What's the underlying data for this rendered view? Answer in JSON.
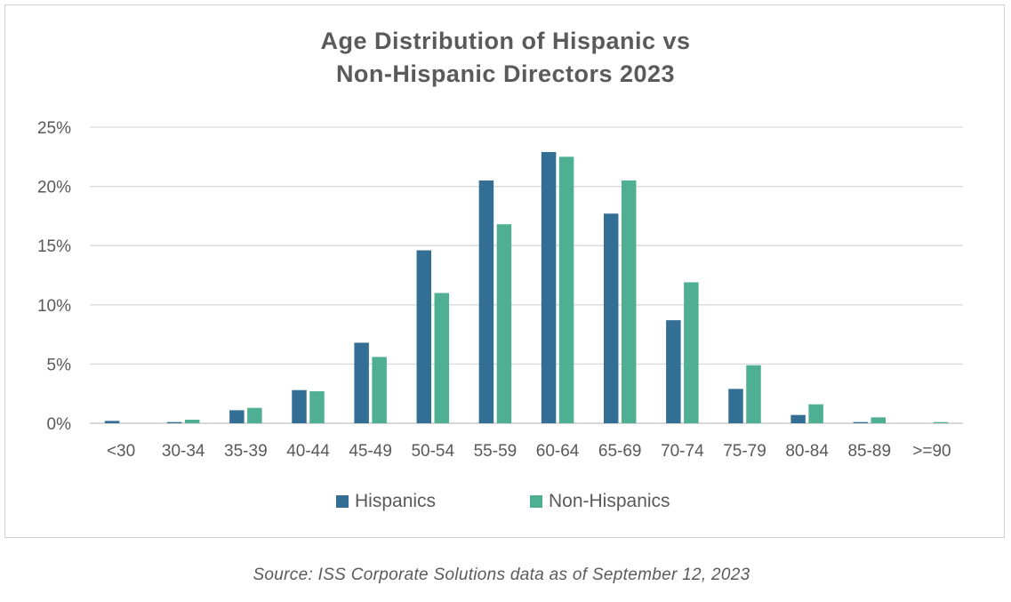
{
  "chart_data": {
    "type": "bar",
    "title": [
      "Age Distribution of Hispanic vs",
      "Non-Hispanic Directors 2023"
    ],
    "categories": [
      "<30",
      "30-34",
      "35-39",
      "40-44",
      "45-49",
      "50-54",
      "55-59",
      "60-64",
      "65-69",
      "70-74",
      "75-79",
      "80-84",
      "85-89",
      ">=90"
    ],
    "series": [
      {
        "name": "Hispanics",
        "color": "#336f94",
        "values": [
          0.2,
          0.1,
          1.1,
          2.8,
          6.8,
          14.6,
          20.5,
          22.9,
          17.7,
          8.7,
          2.9,
          0.7,
          0.1,
          0.0
        ]
      },
      {
        "name": "Non-Hispanics",
        "color": "#4faf93",
        "values": [
          0.0,
          0.3,
          1.3,
          2.7,
          5.6,
          11.0,
          16.8,
          22.5,
          20.5,
          11.9,
          4.9,
          1.6,
          0.5,
          0.1
        ]
      }
    ],
    "yticks": [
      "0%",
      "5%",
      "10%",
      "15%",
      "20%",
      "25%"
    ],
    "ylim": [
      0,
      25
    ],
    "grid": true,
    "legend_position": "bottom-center",
    "xlabel": "",
    "ylabel": ""
  },
  "source_note": "Source: ISS Corporate Solutions data as of September 12, 2023"
}
